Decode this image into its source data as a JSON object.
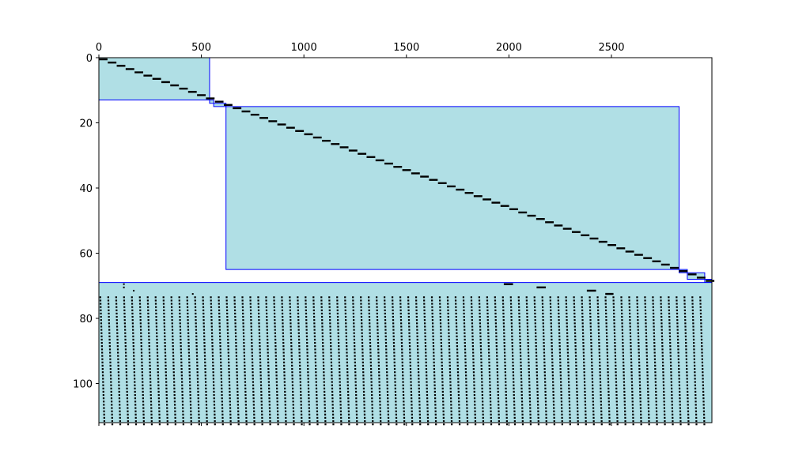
{
  "chart_data": {
    "type": "heatmap",
    "subtype": "sparsity-pattern",
    "title": "",
    "xlabel": "",
    "ylabel": "",
    "x_axis_position": "top",
    "y_axis_inverted": true,
    "xlim": [
      0,
      2990
    ],
    "ylim": [
      112,
      0
    ],
    "grid": false,
    "x_ticks": [
      0,
      500,
      1000,
      1500,
      2000,
      2500
    ],
    "y_ticks": [
      0,
      20,
      40,
      60,
      80,
      100
    ],
    "colors": {
      "block_fill": "#b0dfe5",
      "block_edge": "#0000ff",
      "marker": "#000000"
    },
    "blocks": [
      {
        "x": [
          0,
          540
        ],
        "y": [
          0,
          13
        ]
      },
      {
        "x": [
          540,
          560
        ],
        "y": [
          13,
          14
        ]
      },
      {
        "x": [
          560,
          620
        ],
        "y": [
          14,
          15
        ]
      },
      {
        "x": [
          620,
          2830
        ],
        "y": [
          15,
          65
        ]
      },
      {
        "x": [
          2830,
          2870
        ],
        "y": [
          65,
          66
        ]
      },
      {
        "x": [
          2870,
          2955
        ],
        "y": [
          66,
          68
        ]
      },
      {
        "x": [
          2955,
          2990
        ],
        "y": [
          68,
          69
        ]
      },
      {
        "x": [
          0,
          2990
        ],
        "y": [
          69,
          112
        ]
      }
    ],
    "diagonal_segments": {
      "rows": [
        0,
        68
      ],
      "x_start": [
        0,
        2960
      ],
      "length": 42
    },
    "extra_segments": [
      {
        "row": 69,
        "x": [
          1975,
          2020
        ]
      },
      {
        "row": 70,
        "x": [
          2135,
          2180
        ]
      },
      {
        "row": 71,
        "x": [
          2380,
          2425
        ]
      },
      {
        "row": 72,
        "x": [
          2470,
          2510
        ]
      }
    ],
    "scattered_points": [
      {
        "x": 122,
        "y": 69
      },
      {
        "x": 122,
        "y": 70
      },
      {
        "x": 170,
        "y": 71
      },
      {
        "x": 458,
        "y": 72
      }
    ],
    "dense_region": {
      "rows": [
        73,
        112
      ],
      "column_start": 3,
      "column_spacing": 38.5,
      "column_count": 77,
      "x_shift_over_rows": 20
    }
  }
}
